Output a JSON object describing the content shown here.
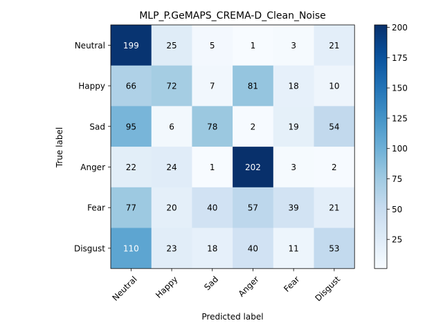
{
  "chart_data": {
    "type": "heatmap",
    "title": "MLP_P.GeMAPS_CREMA-D_Clean_Noise",
    "xlabel": "Predicted label",
    "ylabel": "True label",
    "row_labels": [
      "Neutral",
      "Happy",
      "Sad",
      "Anger",
      "Fear",
      "Disgust"
    ],
    "col_labels": [
      "Neutral",
      "Happy",
      "Sad",
      "Anger",
      "Fear",
      "Disgust"
    ],
    "values": [
      [
        199,
        25,
        5,
        1,
        3,
        21
      ],
      [
        66,
        72,
        7,
        81,
        18,
        10
      ],
      [
        95,
        6,
        78,
        2,
        19,
        54
      ],
      [
        22,
        24,
        1,
        202,
        3,
        2
      ],
      [
        77,
        20,
        40,
        57,
        39,
        21
      ],
      [
        110,
        23,
        18,
        40,
        11,
        53
      ]
    ],
    "colorscale": "Blues",
    "vmin": 1,
    "vmax": 202,
    "colorbar_ticks": [
      25,
      50,
      75,
      100,
      125,
      150,
      175,
      200
    ]
  }
}
